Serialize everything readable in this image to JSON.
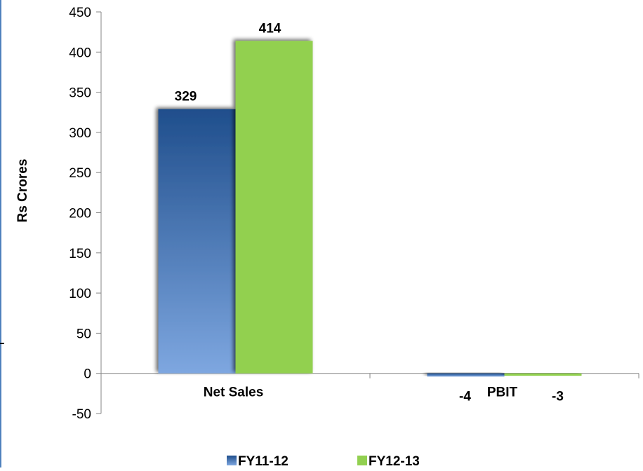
{
  "chart_data": {
    "type": "bar",
    "title": "",
    "xlabel": "",
    "ylabel": "Rs Crores",
    "ylim": [
      -50,
      450
    ],
    "yticks": [
      -50,
      0,
      50,
      100,
      150,
      200,
      250,
      300,
      350,
      400,
      450
    ],
    "grid": false,
    "legend_position": "bottom",
    "categories": [
      "Net Sales",
      "PBIT"
    ],
    "series": [
      {
        "name": "FY11-12",
        "values": [
          329,
          -4
        ],
        "color": "#4f81bd"
      },
      {
        "name": "FY12-13",
        "values": [
          414,
          -3
        ],
        "color": "#92d050"
      }
    ]
  }
}
